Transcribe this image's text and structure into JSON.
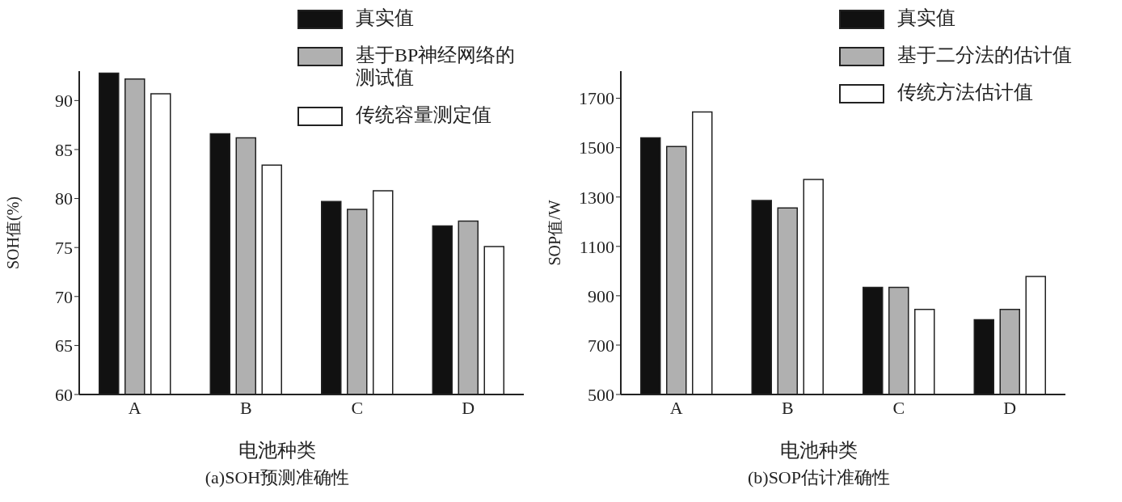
{
  "chart_data": [
    {
      "type": "bar",
      "title": "(a)SOH预测准确性",
      "xlabel": "电池种类",
      "ylabel": "SOH值(%)",
      "categories": [
        "A",
        "B",
        "C",
        "D"
      ],
      "series": [
        {
          "name": "真实值",
          "color": "#111111",
          "values": [
            92.8,
            86.6,
            79.7,
            77.2
          ]
        },
        {
          "name": "基于BP神经网络的测试值",
          "color": "#b0b0b0",
          "values": [
            92.2,
            86.2,
            78.9,
            77.7
          ]
        },
        {
          "name": "传统容量测定值",
          "color": "#ffffff",
          "values": [
            90.7,
            83.4,
            80.8,
            75.1
          ]
        }
      ],
      "ylim": [
        60,
        93
      ],
      "yticks": [
        60,
        65,
        70,
        75,
        80,
        85,
        90
      ],
      "grid": false,
      "legend": "top right"
    },
    {
      "type": "bar",
      "title": "(b)SOP估计准确性",
      "xlabel": "电池种类",
      "ylabel": "SOP值/W",
      "categories": [
        "A",
        "B",
        "C",
        "D"
      ],
      "series": [
        {
          "name": "真实值",
          "color": "#111111",
          "values": [
            1540,
            1286,
            934,
            803
          ]
        },
        {
          "name": "基于二分法的估计值",
          "color": "#b0b0b0",
          "values": [
            1505,
            1256,
            934,
            845
          ]
        },
        {
          "name": "传统方法估计值",
          "color": "#ffffff",
          "values": [
            1645,
            1371,
            845,
            978
          ]
        }
      ],
      "ylim": [
        500,
        1810
      ],
      "yticks": [
        500,
        700,
        900,
        1100,
        1300,
        1500,
        1700
      ],
      "grid": false,
      "legend": "top right"
    }
  ]
}
